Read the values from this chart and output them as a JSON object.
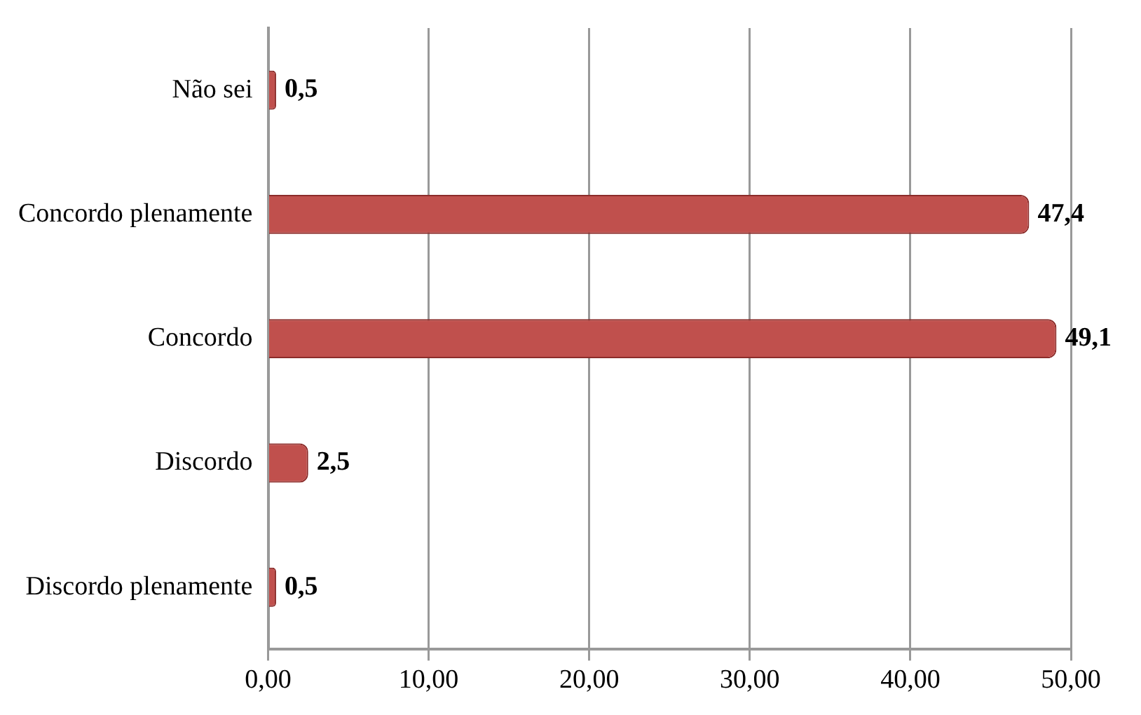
{
  "chart_data": {
    "type": "bar",
    "orientation": "horizontal",
    "categories": [
      "Não sei",
      "Concordo plenamente",
      "Concordo",
      "Discordo",
      "Discordo plenamente"
    ],
    "values": [
      0.5,
      47.4,
      49.1,
      2.5,
      0.5
    ],
    "value_labels": [
      "0,5",
      "47,4",
      "49,1",
      "2,5",
      "0,5"
    ],
    "color": "#c0504d",
    "xlim": [
      0,
      50
    ],
    "xticks": [
      {
        "value": 0,
        "label": "0,00"
      },
      {
        "value": 10,
        "label": "10,00"
      },
      {
        "value": 20,
        "label": "20,00"
      },
      {
        "value": 30,
        "label": "30,00"
      },
      {
        "value": 40,
        "label": "40,00"
      },
      {
        "value": 50,
        "label": "50,00"
      }
    ],
    "grid": "x",
    "legend": false
  }
}
